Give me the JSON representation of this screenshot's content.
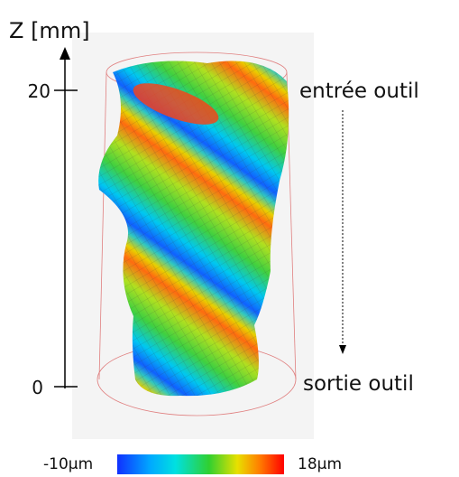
{
  "axis": {
    "label": "Z [mm]",
    "ticks": [
      "20",
      "0"
    ]
  },
  "annotations": {
    "top": "entrée outil",
    "bottom": "sortie outil"
  },
  "colorbar": {
    "min_label": "-10µm",
    "max_label": "18µm"
  }
}
